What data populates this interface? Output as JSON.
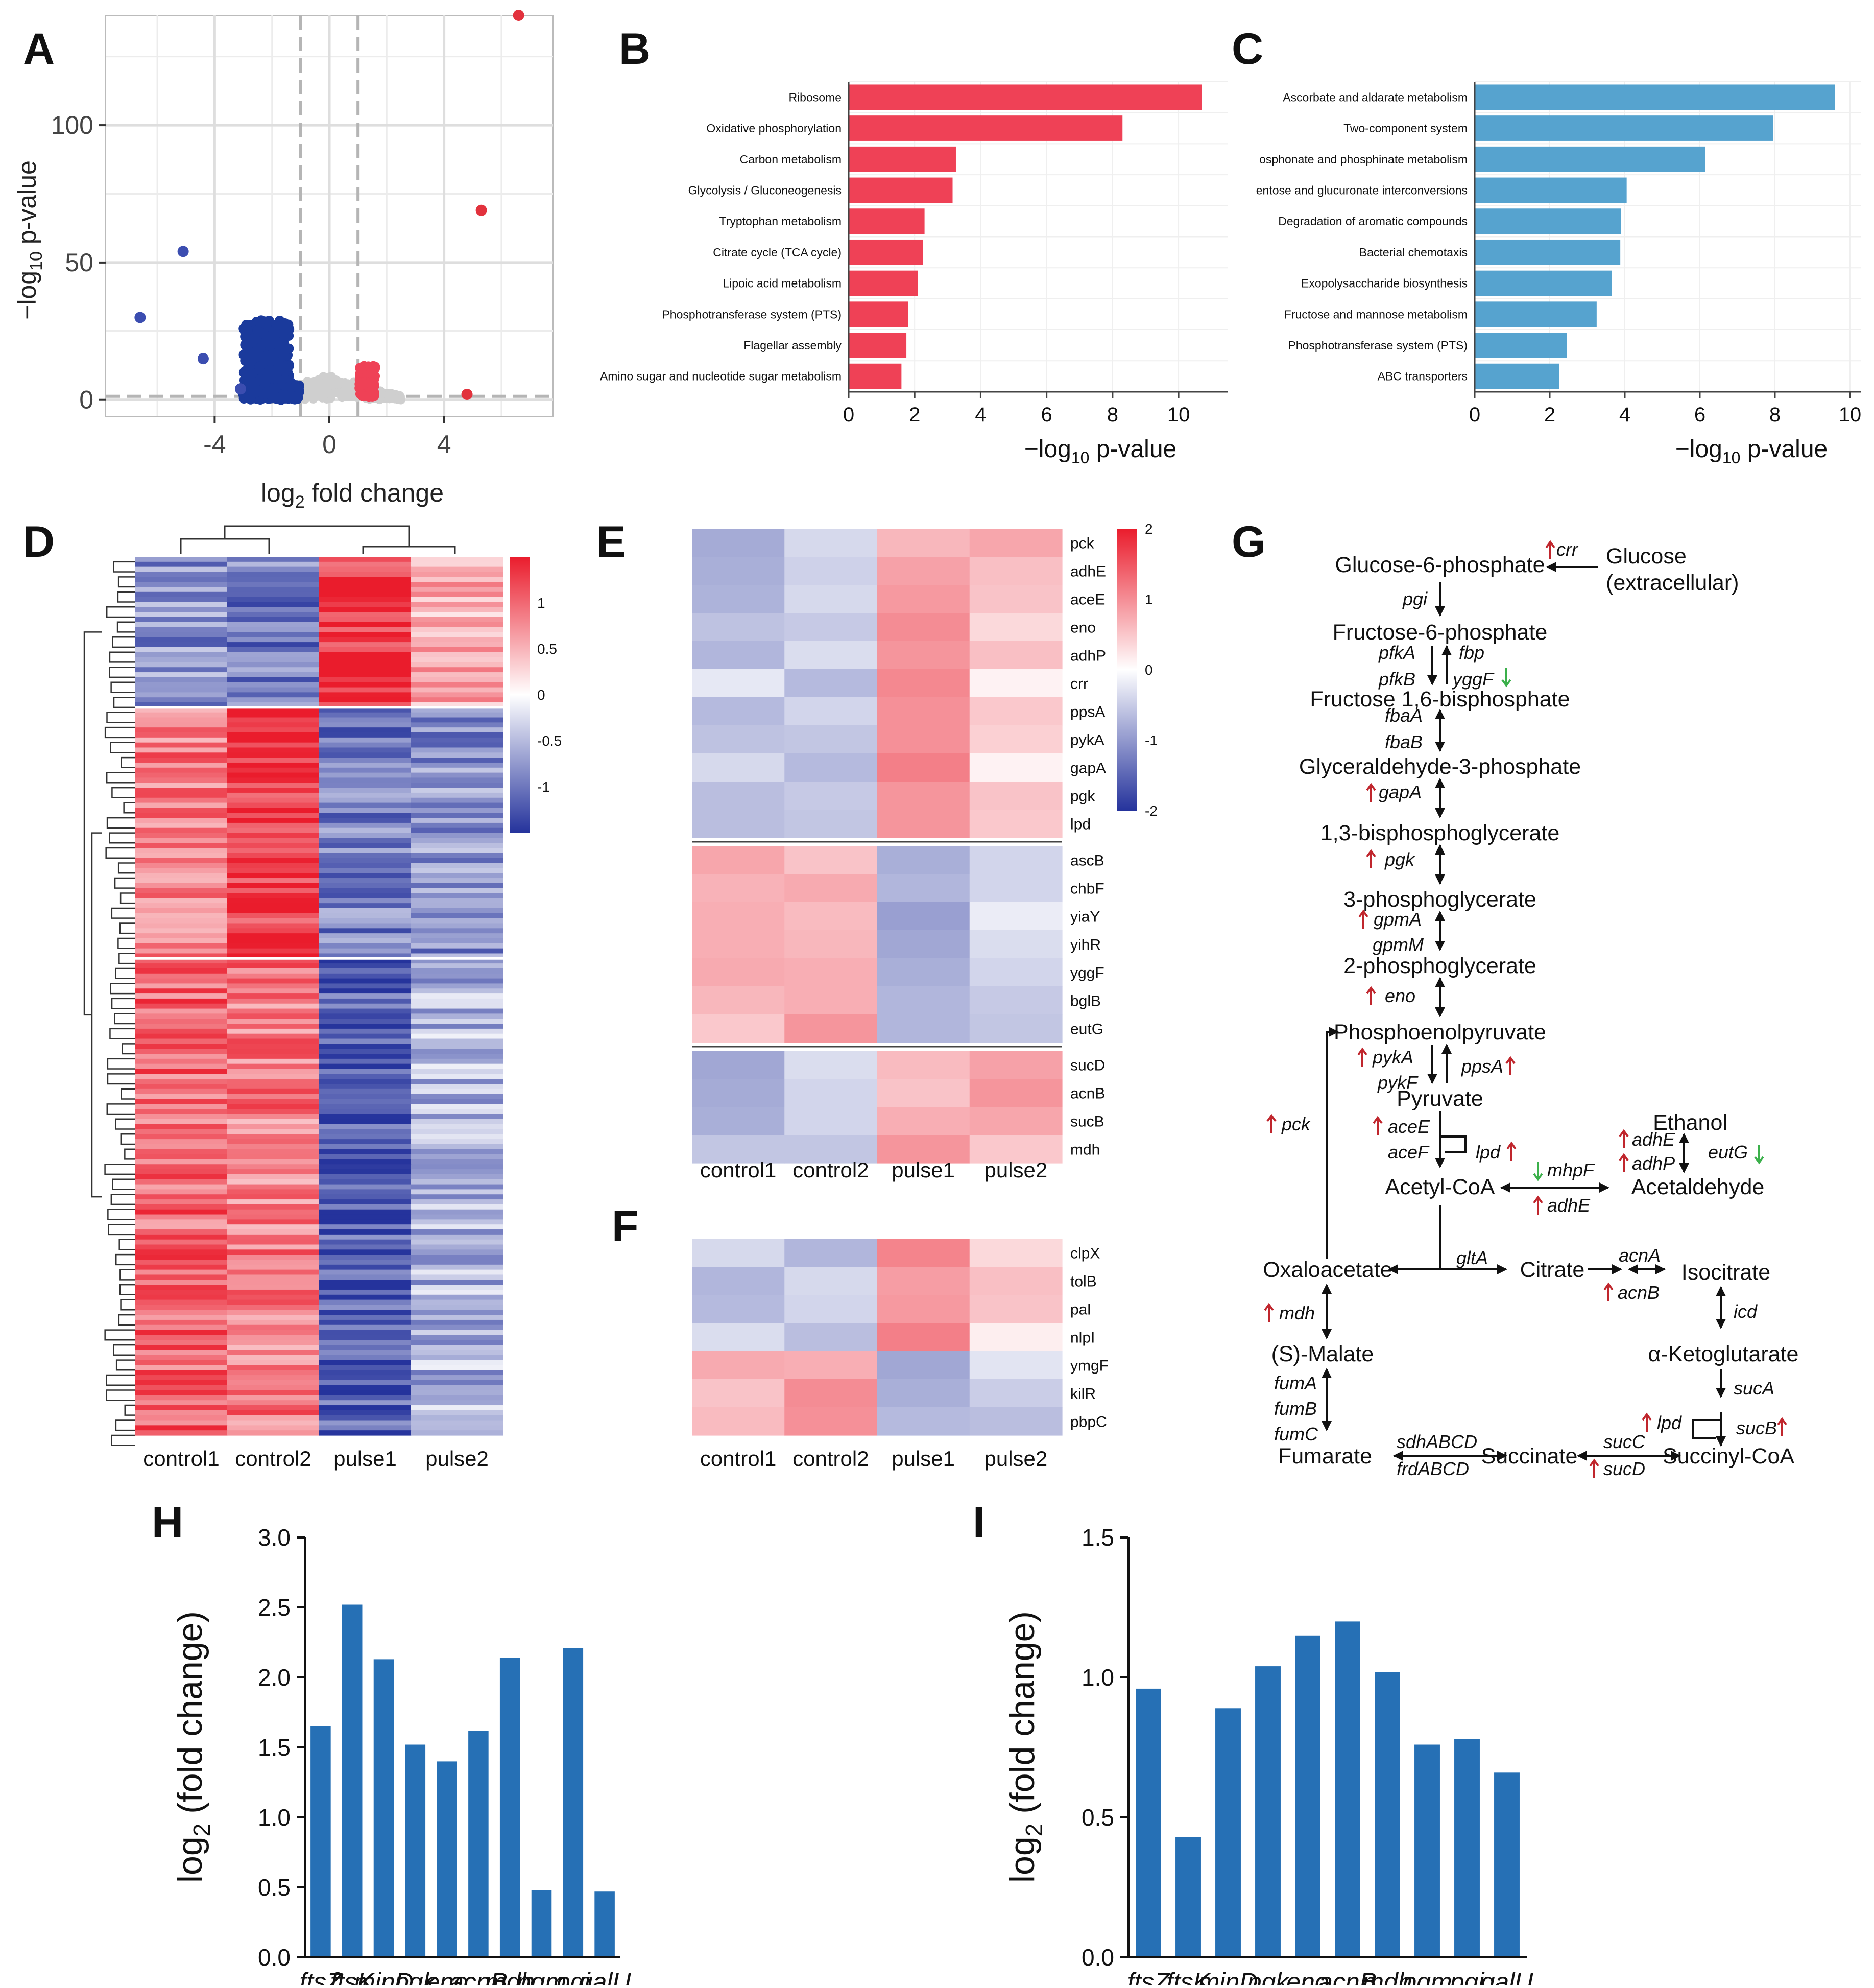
{
  "figure": {
    "panel_letters": [
      "A",
      "B",
      "C",
      "D",
      "E",
      "F",
      "G",
      "H",
      "I"
    ],
    "colors": {
      "red": "#ef4156",
      "blue_bar": "#56a3cf",
      "volcano_blue": "#1a3a9c",
      "qpcr_blue": "#2670b5",
      "heat_high": "#ea1c2c",
      "heat_low": "#25339c",
      "up_arrow": "#c0262d",
      "down_arrow": "#3bb04b"
    }
  },
  "chart_data": [
    {
      "panel": "A",
      "type": "scatter",
      "xlabel_main": "log",
      "xlabel_sub": "2",
      "xlabel_rest": " fold change",
      "ylabel_pre": "−log",
      "ylabel_sub": "10",
      "ylabel_post": " p-value",
      "xlim": [
        -7.8,
        7.8
      ],
      "ylim": [
        -6,
        140
      ],
      "xticks": [
        -4,
        0,
        4
      ],
      "yticks": [
        0,
        50,
        100
      ],
      "xtick_labels": [
        "-4",
        "0",
        "4"
      ],
      "ytick_labels": [
        "0",
        "50",
        "100"
      ],
      "thresholds_x": [
        -1,
        1
      ],
      "threshold_y": 1.3,
      "up_points": [
        [
          6.6,
          140
        ],
        [
          5.3,
          69
        ],
        [
          4.8,
          2
        ]
      ],
      "down_points": [
        [
          -6.6,
          30
        ],
        [
          -5.1,
          54
        ],
        [
          -4.4,
          15
        ],
        [
          -3.1,
          4
        ]
      ],
      "grey_range": [
        -2.5,
        2.5
      ]
    },
    {
      "panel": "B",
      "type": "bar",
      "orientation": "horizontal",
      "categories": [
        "Ribosome",
        "Oxidative phosphorylation",
        "Carbon metabolism",
        "Glycolysis / Gluconeogenesis",
        "Tryptophan metabolism",
        "Citrate cycle (TCA cycle)",
        "Lipoic acid metabolism",
        "Phosphotransferase system (PTS)",
        "Flagellar assembly",
        "Amino sugar and nucleotide sugar metabolism"
      ],
      "values": [
        10.7,
        8.3,
        3.25,
        3.15,
        2.3,
        2.25,
        2.1,
        1.8,
        1.75,
        1.6
      ],
      "xlim": [
        0,
        11.5
      ],
      "xticks": [
        0,
        2,
        4,
        6,
        8,
        10
      ],
      "xtick_labels": [
        "0",
        "2",
        "4",
        "6",
        "8",
        "10"
      ],
      "xlabel_pre": "−log",
      "xlabel_sub": "10",
      "xlabel_post": " p-value",
      "color": "#ef4156"
    },
    {
      "panel": "C",
      "type": "bar",
      "orientation": "horizontal",
      "categories": [
        "Ascorbate and aldarate metabolism",
        "Two-component system",
        "Phosphonate and phosphinate metabolism",
        "Pentose and glucuronate interconversions",
        "Degradation of aromatic compounds",
        "Bacterial chemotaxis",
        "Exopolysaccharide biosynthesis",
        "Fructose and mannose metabolism",
        "Phosphotransferase system (PTS)",
        "ABC transporters"
      ],
      "display_labels": [
        "Ascorbate and aldarate metabolism",
        "Two-component system",
        "osphonate and phosphinate metabolism",
        "entose and glucuronate interconversions",
        "Degradation of aromatic compounds",
        "Bacterial chemotaxis",
        "Exopolysaccharide biosynthesis",
        "Fructose and mannose metabolism",
        "Phosphotransferase system (PTS)",
        "ABC transporters"
      ],
      "values": [
        9.6,
        7.95,
        6.15,
        4.05,
        3.9,
        3.88,
        3.65,
        3.25,
        2.45,
        2.25
      ],
      "xlim": [
        0,
        10.3
      ],
      "xticks": [
        0,
        2,
        4,
        6,
        8,
        10
      ],
      "xtick_labels": [
        "0",
        "2",
        "4",
        "6",
        "8",
        "10"
      ],
      "xlabel_pre": "−log",
      "xlabel_sub": "10",
      "xlabel_post": " p-value",
      "color": "#56a3cf"
    },
    {
      "panel": "D",
      "type": "heatmap",
      "columns": [
        "control1",
        "control2",
        "pulse1",
        "pulse2"
      ],
      "legend_ticks": [
        1,
        0.5,
        0,
        -0.5,
        -1
      ],
      "legend_labels": [
        "1",
        "0.5",
        "0",
        "-0.5",
        "-1"
      ],
      "legend_range": [
        -1.5,
        1.5
      ],
      "clusters": [
        {
          "n_rows": 30,
          "pattern": [
            -0.8,
            -0.95,
            1.35,
            0.6
          ]
        },
        {
          "n_rows": 50,
          "pattern": [
            0.9,
            1.3,
            -0.95,
            -0.8
          ]
        },
        {
          "n_rows": 95,
          "pattern": [
            1.0,
            0.85,
            -1.2,
            -0.55
          ]
        }
      ]
    },
    {
      "panel": "E",
      "type": "heatmap",
      "columns": [
        "control1",
        "control2",
        "pulse1",
        "pulse2"
      ],
      "rows": [
        "pck",
        "adhE",
        "aceE",
        "eno",
        "adhP",
        "crr",
        "ppsA",
        "pykA",
        "gapA",
        "pgk",
        "lpd",
        "ascB",
        "chbF",
        "yiaY",
        "yihR",
        "yggF",
        "bglB",
        "eutG",
        "sucD",
        "acnB",
        "sucB",
        "mdh"
      ],
      "values": [
        [
          -1.1,
          -0.5,
          0.85,
          1.05
        ],
        [
          -1.05,
          -0.6,
          1.1,
          0.75
        ],
        [
          -1.0,
          -0.5,
          1.2,
          0.7
        ],
        [
          -0.8,
          -0.7,
          1.35,
          0.45
        ],
        [
          -0.95,
          -0.45,
          1.25,
          0.75
        ],
        [
          -0.3,
          -0.9,
          1.4,
          0.15
        ],
        [
          -0.9,
          -0.55,
          1.3,
          0.65
        ],
        [
          -0.8,
          -0.75,
          1.3,
          0.55
        ],
        [
          -0.5,
          -0.9,
          1.5,
          0.15
        ],
        [
          -0.85,
          -0.7,
          1.25,
          0.7
        ],
        [
          -0.85,
          -0.75,
          1.25,
          0.65
        ],
        [
          1.05,
          0.7,
          -1.05,
          -0.55
        ],
        [
          0.9,
          1.0,
          -0.95,
          -0.55
        ],
        [
          0.95,
          0.8,
          -1.25,
          -0.25
        ],
        [
          0.95,
          0.85,
          -1.15,
          -0.45
        ],
        [
          1.0,
          0.95,
          -1.05,
          -0.55
        ],
        [
          0.85,
          0.95,
          -0.95,
          -0.7
        ],
        [
          0.65,
          1.25,
          -0.95,
          -0.75
        ],
        [
          -1.15,
          -0.45,
          0.8,
          1.1
        ],
        [
          -1.1,
          -0.55,
          0.7,
          1.25
        ],
        [
          -1.05,
          -0.55,
          0.95,
          1.05
        ],
        [
          -0.75,
          -0.75,
          1.25,
          0.65
        ]
      ],
      "legend_ticks": [
        2,
        1,
        0,
        -1,
        -2
      ],
      "legend_labels": [
        "2",
        "1",
        "0",
        "-1",
        "-2"
      ],
      "legend_range": [
        -2,
        2
      ]
    },
    {
      "panel": "F",
      "type": "heatmap",
      "columns": [
        "control1",
        "control2",
        "pulse1",
        "pulse2"
      ],
      "rows": [
        "clpX",
        "tolB",
        "pal",
        "nlpI",
        "ymgF",
        "kilR",
        "pbpC"
      ],
      "values": [
        [
          -0.5,
          -0.95,
          1.45,
          0.45
        ],
        [
          -0.95,
          -0.5,
          1.15,
          0.75
        ],
        [
          -0.9,
          -0.55,
          1.2,
          0.7
        ],
        [
          -0.45,
          -0.85,
          1.5,
          0.2
        ],
        [
          1.0,
          0.95,
          -1.15,
          -0.35
        ],
        [
          0.7,
          1.35,
          -1.05,
          -0.65
        ],
        [
          0.8,
          1.3,
          -0.9,
          -0.85
        ]
      ],
      "legend_range": [
        -2,
        2
      ]
    },
    {
      "panel": "H",
      "type": "bar",
      "categories": [
        "ftsZ",
        "ftsK",
        "minD",
        "pgk",
        "eno",
        "acnB",
        "mdh",
        "pgm",
        "pgi",
        "galU"
      ],
      "values": [
        1.65,
        2.52,
        2.13,
        1.52,
        1.4,
        1.62,
        2.14,
        0.48,
        2.21,
        0.47
      ],
      "ylim": [
        0,
        3.0
      ],
      "yticks": [
        0,
        0.5,
        1.0,
        1.5,
        2.0,
        2.5,
        3.0
      ],
      "ytick_labels": [
        "0.0",
        "0.5",
        "1.0",
        "1.5",
        "2.0",
        "2.5",
        "3.0"
      ],
      "ylabel_pre": "log",
      "ylabel_sub": "2",
      "ylabel_post": " (fold change)",
      "color": "#2670b5"
    },
    {
      "panel": "I",
      "type": "bar",
      "categories": [
        "ftsZ",
        "ftsK",
        "minD",
        "pgk",
        "eno",
        "acnB",
        "mdh",
        "pgm",
        "pgi",
        "galU"
      ],
      "values": [
        0.96,
        0.43,
        0.89,
        1.04,
        1.15,
        1.2,
        1.02,
        0.76,
        0.78,
        0.66
      ],
      "ylim": [
        0,
        1.5
      ],
      "yticks": [
        0,
        0.5,
        1.0,
        1.5
      ],
      "ytick_labels": [
        "0.0",
        "0.5",
        "1.0",
        "1.5"
      ],
      "ylabel_pre": "log",
      "ylabel_sub": "2",
      "ylabel_post": " (fold change)",
      "color": "#2670b5"
    }
  ],
  "pathway": {
    "metabolites": [
      "Glucose-6-phosphate",
      "Glucose",
      "(extracellular)",
      "Fructose-6-phosphate",
      "Fructose 1,6-bisphosphate",
      "Glyceraldehyde-3-phosphate",
      "1,3-bisphosphoglycerate",
      "3-phosphoglycerate",
      "2-phosphoglycerate",
      "Phosphoenolpyruvate",
      "Pyruvate",
      "Ethanol",
      "Acetyl-CoA",
      "Acetaldehyde",
      "Oxaloacetate",
      "Citrate",
      "Isocitrate",
      "α-Ketoglutarate",
      "(S)-Malate",
      "Fumarate",
      "Succinate",
      "Succinyl-CoA"
    ],
    "genes": [
      "crr",
      "pgi",
      "pfkA",
      "pfkB",
      "fbp",
      "yggF",
      "fbaA",
      "fbaB",
      "gapA",
      "pgk",
      "gpmA",
      "gpmM",
      "eno",
      "pykA",
      "pykF",
      "ppsA",
      "pck",
      "aceE",
      "aceF",
      "lpd",
      "adhE",
      "adhP",
      "eutG",
      "mhpF",
      "adhE",
      "gltA",
      "acnA",
      "acnB",
      "icd",
      "mdh",
      "sucA",
      "fumA",
      "fumB",
      "fumC",
      "lpd",
      "sucB",
      "sdhABCD",
      "frdABCD",
      "sucC",
      "sucD"
    ]
  }
}
